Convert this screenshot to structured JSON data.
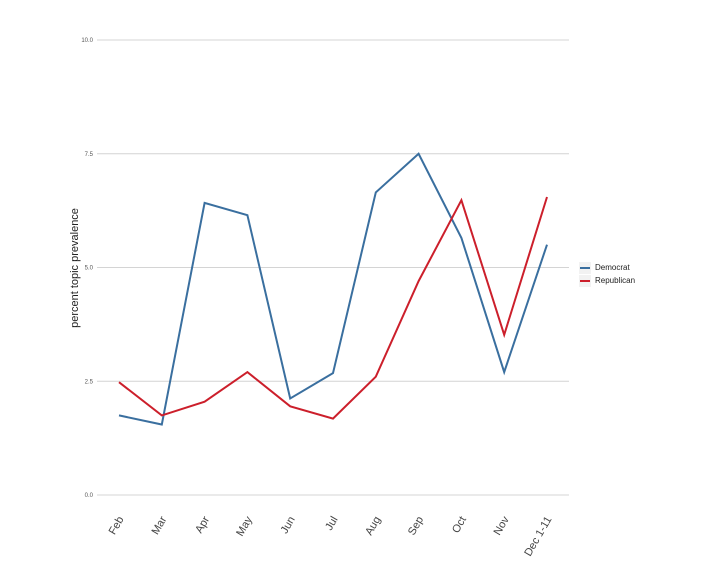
{
  "chart_data": {
    "type": "line",
    "categories": [
      "Feb",
      "Mar",
      "Apr",
      "May",
      "Jun",
      "Jul",
      "Aug",
      "Sep",
      "Oct",
      "Nov",
      "Dec 1-11"
    ],
    "series": [
      {
        "name": "Democrat",
        "color": "#3a6f9f",
        "values": [
          1.75,
          1.55,
          6.42,
          6.15,
          2.12,
          2.68,
          6.65,
          7.5,
          5.65,
          2.7,
          5.5
        ]
      },
      {
        "name": "Republican",
        "color": "#cc1f2b",
        "values": [
          2.48,
          1.75,
          2.05,
          2.7,
          1.95,
          1.68,
          2.6,
          4.7,
          6.48,
          3.52,
          6.55
        ]
      }
    ],
    "ylabel": "percent topic prevalence",
    "xlabel": "",
    "ylim": [
      0,
      10
    ],
    "yticks": [
      "0.0",
      "2.5",
      "5.0",
      "7.5",
      "10.0"
    ],
    "grid": "horizontal",
    "legend_position": "right"
  }
}
